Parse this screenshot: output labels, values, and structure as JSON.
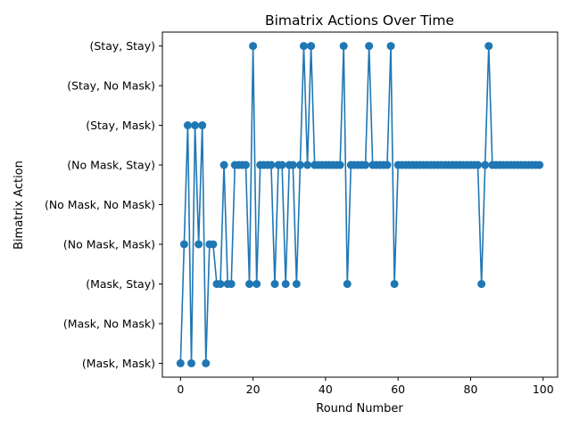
{
  "chart_data": {
    "type": "line",
    "title": "Bimatrix Actions Over Time",
    "xlabel": "Round Number",
    "ylabel": "Bimatrix Action",
    "xlim": [
      -5,
      104
    ],
    "ylim": [
      -0.35,
      8.35
    ],
    "xticks": [
      0,
      20,
      40,
      60,
      80,
      100
    ],
    "xtick_labels": [
      "0",
      "20",
      "40",
      "60",
      "80",
      "100"
    ],
    "yticks": [
      0,
      1,
      2,
      3,
      4,
      5,
      6,
      7,
      8
    ],
    "ytick_labels": [
      "(Mask, Mask)",
      "(Mask, No Mask)",
      "(Mask, Stay)",
      "(No Mask, Mask)",
      "(No Mask, No Mask)",
      "(No Mask, Stay)",
      "(Stay, Mask)",
      "(Stay, No Mask)",
      "(Stay, Stay)"
    ],
    "grid": false,
    "color": "#1f77b4",
    "marker": "circle",
    "series": [
      {
        "x": [
          0,
          1,
          2,
          3,
          4,
          5,
          6,
          7,
          8,
          9,
          10,
          11,
          12,
          13,
          14,
          15,
          16,
          17,
          18,
          19,
          20,
          21,
          22,
          23,
          24,
          25,
          26,
          27,
          28,
          29,
          30,
          31,
          32,
          33,
          34,
          35,
          36,
          37,
          38,
          39,
          40,
          41,
          42,
          43,
          44,
          45,
          46,
          47,
          48,
          49,
          50,
          51,
          52,
          53,
          54,
          55,
          56,
          57,
          58,
          59,
          60,
          61,
          62,
          63,
          64,
          65,
          66,
          67,
          68,
          69,
          70,
          71,
          72,
          73,
          74,
          75,
          76,
          77,
          78,
          79,
          80,
          81,
          82,
          83,
          84,
          85,
          86,
          87,
          88,
          89,
          90,
          91,
          92,
          93,
          94,
          95,
          96,
          97,
          98,
          99
        ],
        "y": [
          0,
          3,
          6,
          0,
          6,
          3,
          6,
          0,
          3,
          3,
          2,
          2,
          5,
          2,
          2,
          5,
          5,
          5,
          5,
          2,
          8,
          2,
          5,
          5,
          5,
          5,
          2,
          5,
          5,
          2,
          5,
          5,
          2,
          5,
          8,
          5,
          8,
          5,
          5,
          5,
          5,
          5,
          5,
          5,
          5,
          8,
          2,
          5,
          5,
          5,
          5,
          5,
          8,
          5,
          5,
          5,
          5,
          5,
          8,
          2,
          5,
          5,
          5,
          5,
          5,
          5,
          5,
          5,
          5,
          5,
          5,
          5,
          5,
          5,
          5,
          5,
          5,
          5,
          5,
          5,
          5,
          5,
          5,
          2,
          5,
          8,
          5,
          5,
          5,
          5,
          5,
          5,
          5,
          5,
          5,
          5,
          5,
          5,
          5,
          5
        ]
      }
    ]
  }
}
